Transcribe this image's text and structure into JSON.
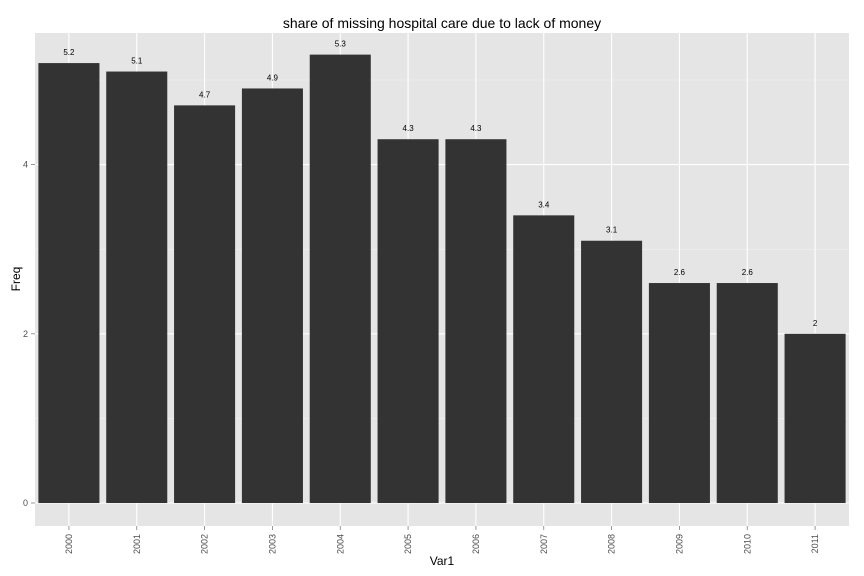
{
  "chart_data": {
    "type": "bar",
    "title": "share of missing hospital care due to lack of money",
    "xlabel": "Var1",
    "ylabel": "Freq",
    "categories": [
      "2000",
      "2001",
      "2002",
      "2003",
      "2004",
      "2005",
      "2006",
      "2007",
      "2008",
      "2009",
      "2010",
      "2011"
    ],
    "values": [
      5.2,
      5.1,
      4.7,
      4.9,
      5.3,
      4.3,
      4.3,
      3.4,
      3.1,
      2.6,
      2.6,
      2
    ],
    "data_labels": [
      "5.2",
      "5.1",
      "4.7",
      "4.9",
      "5.3",
      "4.3",
      "4.3",
      "3.4",
      "3.1",
      "2.6",
      "2.6",
      "2"
    ],
    "ylim": [
      0,
      5.5
    ],
    "yticks": [
      0,
      2,
      4
    ],
    "ytick_labels": [
      "0",
      "2",
      "4"
    ],
    "grid": true,
    "legend": "none",
    "colors": {
      "bar": "#333333",
      "panel": "#e5e5e5",
      "grid_major": "#ffffff",
      "grid_minor": "#f2f2f2"
    }
  }
}
